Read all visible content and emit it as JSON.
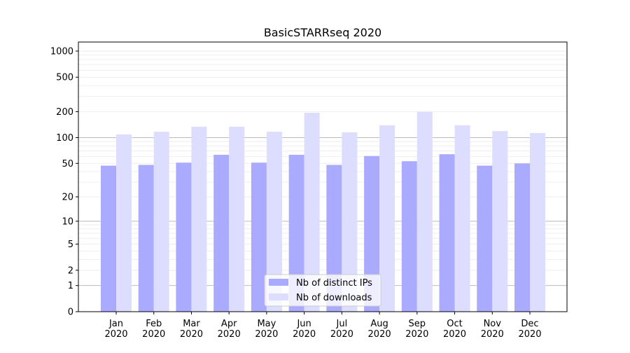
{
  "chart_data": {
    "type": "bar",
    "title": "BasicSTARRseq 2020",
    "xlabel": "",
    "ylabel": "",
    "yscale": "symlog",
    "ylim": [
      0,
      1300
    ],
    "yticks": [
      0,
      1,
      2,
      5,
      10,
      20,
      50,
      100,
      200,
      500,
      1000
    ],
    "categories": [
      "Jan\n2020",
      "Feb\n2020",
      "Mar\n2020",
      "Apr\n2020",
      "May\n2020",
      "Jun\n2020",
      "Jul\n2020",
      "Aug\n2020",
      "Sep\n2020",
      "Oct\n2020",
      "Nov\n2020",
      "Dec\n2020"
    ],
    "series": [
      {
        "name": "Nb of distinct IPs",
        "color": "#aaaaff",
        "values": [
          47,
          48,
          51,
          63,
          51,
          63,
          48,
          61,
          53,
          64,
          47,
          50
        ]
      },
      {
        "name": "Nb of downloads",
        "color": "#ddddff",
        "values": [
          109,
          117,
          134,
          134,
          117,
          194,
          115,
          139,
          199,
          139,
          119,
          113
        ]
      }
    ],
    "legend": "lower center",
    "grid": true
  }
}
